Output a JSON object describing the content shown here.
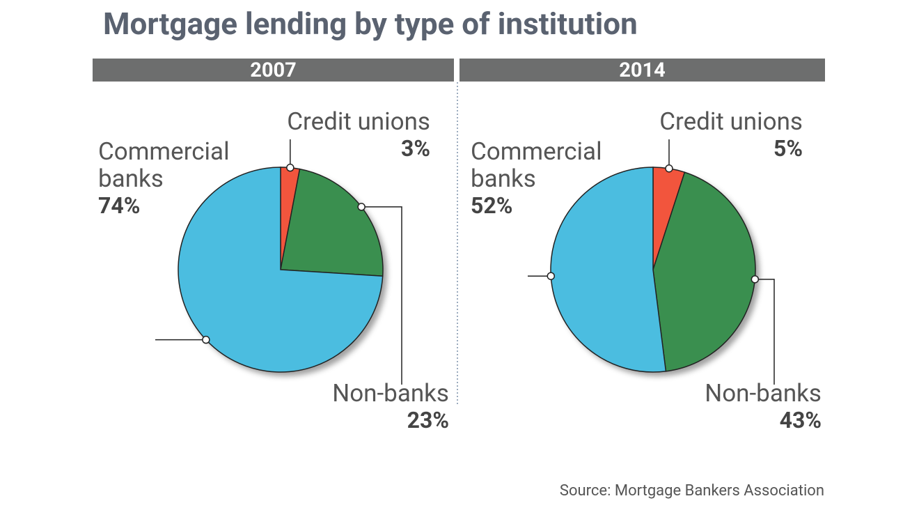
{
  "title": "Mortgage lending by type of institution",
  "source": "Source: Mortgage Bankers Association",
  "chart_data": [
    {
      "type": "pie",
      "title": "2007",
      "categories": [
        "Credit unions",
        "Non-banks",
        "Commercial banks"
      ],
      "values": [
        3,
        23,
        74
      ],
      "value_labels": [
        "3%",
        "23%",
        "74%"
      ],
      "colors": [
        "#f2553d",
        "#3a8f4f",
        "#4bbde0"
      ]
    },
    {
      "type": "pie",
      "title": "2014",
      "categories": [
        "Credit unions",
        "Non-banks",
        "Commercial banks"
      ],
      "values": [
        5,
        43,
        52
      ],
      "value_labels": [
        "5%",
        "43%",
        "52%"
      ],
      "colors": [
        "#f2553d",
        "#3a8f4f",
        "#4bbde0"
      ]
    }
  ]
}
